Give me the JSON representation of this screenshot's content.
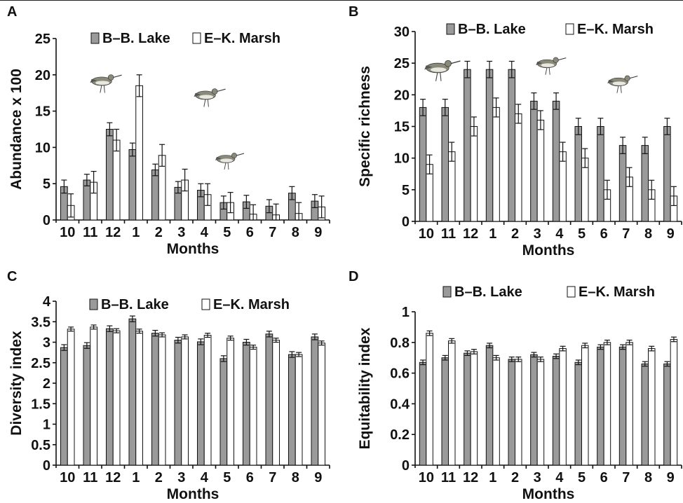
{
  "colors": {
    "lake": "#9a9a9a",
    "marsh": "#ffffff",
    "stroke": "#111111"
  },
  "bird_icon": "sandpiper-icon",
  "chart_data": [
    {
      "panel": "A",
      "type": "bar",
      "title": "",
      "xlabel": "Months",
      "ylabel": "Abundance x 100",
      "categories": [
        "10",
        "11",
        "12",
        "1",
        "2",
        "3",
        "4",
        "5",
        "6",
        "7",
        "8",
        "9"
      ],
      "ylim": [
        0,
        25
      ],
      "yticks": [
        "0",
        "5",
        "10",
        "15",
        "20",
        "25"
      ],
      "legend": "top-right",
      "series": [
        {
          "name": "B–B. Lake",
          "values": [
            4.6,
            5.5,
            12.5,
            9.7,
            6.9,
            4.5,
            4.1,
            2.4,
            2.5,
            1.9,
            3.7,
            2.6
          ],
          "errors": [
            0.9,
            0.8,
            0.9,
            0.9,
            0.8,
            0.8,
            0.9,
            0.9,
            0.9,
            0.9,
            0.9,
            0.9
          ]
        },
        {
          "name": "E–K. Marsh",
          "values": [
            2.0,
            5.2,
            11.0,
            18.5,
            8.9,
            5.5,
            3.5,
            2.4,
            0.8,
            0.7,
            0.9,
            1.8
          ],
          "errors": [
            1.6,
            1.5,
            1.5,
            1.5,
            1.5,
            1.5,
            1.5,
            1.4,
            1.3,
            1.5,
            1.5,
            1.5
          ]
        }
      ]
    },
    {
      "panel": "B",
      "type": "bar",
      "title": "",
      "xlabel": "Months",
      "ylabel": "Specific richness",
      "categories": [
        "10",
        "11",
        "12",
        "1",
        "2",
        "3",
        "4",
        "5",
        "6",
        "7",
        "8",
        "9"
      ],
      "ylim": [
        0,
        30
      ],
      "yticks": [
        "0",
        "5",
        "10",
        "15",
        "20",
        "25",
        "30"
      ],
      "legend": "top-right",
      "series": [
        {
          "name": "B–B. Lake",
          "values": [
            18,
            18,
            24,
            24,
            24,
            19,
            19,
            15,
            15,
            12,
            12,
            15
          ],
          "errors": [
            1.3,
            1.3,
            1.3,
            1.3,
            1.3,
            1.3,
            1.3,
            1.3,
            1.3,
            1.3,
            1.3,
            1.3
          ]
        },
        {
          "name": "E–K. Marsh",
          "values": [
            9,
            11,
            15,
            18,
            17,
            16,
            11,
            10,
            5,
            7,
            5,
            4
          ],
          "errors": [
            1.5,
            1.5,
            1.5,
            1.5,
            1.5,
            1.5,
            1.5,
            1.5,
            1.5,
            1.5,
            1.5,
            1.5
          ]
        }
      ]
    },
    {
      "panel": "C",
      "type": "bar",
      "title": "",
      "xlabel": "Months",
      "ylabel": "Diversity index",
      "categories": [
        "10",
        "11",
        "12",
        "1",
        "2",
        "3",
        "4",
        "5",
        "6",
        "7",
        "8",
        "9"
      ],
      "ylim": [
        0,
        4
      ],
      "yticks": [
        "0",
        "0.5",
        "1",
        "1.5",
        "2",
        "2.5",
        "3",
        "3.5",
        "4"
      ],
      "legend": "top-right",
      "series": [
        {
          "name": "B–B. Lake",
          "values": [
            2.87,
            2.92,
            3.33,
            3.57,
            3.22,
            3.05,
            3.01,
            2.6,
            3.0,
            3.2,
            2.7,
            3.13
          ],
          "errors": [
            0.07,
            0.07,
            0.07,
            0.07,
            0.07,
            0.07,
            0.07,
            0.07,
            0.07,
            0.07,
            0.07,
            0.07
          ]
        },
        {
          "name": "E–K. Marsh",
          "values": [
            3.32,
            3.37,
            3.28,
            3.27,
            3.18,
            3.13,
            3.17,
            3.1,
            2.88,
            3.05,
            2.7,
            2.98
          ],
          "errors": [
            0.05,
            0.05,
            0.05,
            0.05,
            0.05,
            0.05,
            0.05,
            0.05,
            0.05,
            0.05,
            0.05,
            0.05
          ]
        }
      ]
    },
    {
      "panel": "D",
      "type": "bar",
      "title": "",
      "xlabel": "Months",
      "ylabel": "Equitability index",
      "categories": [
        "10",
        "11",
        "12",
        "1",
        "2",
        "3",
        "4",
        "5",
        "6",
        "7",
        "8",
        "9"
      ],
      "ylim": [
        0,
        1
      ],
      "yticks": [
        "0",
        "0.2",
        "0.4",
        "0.6",
        "0.8",
        "1"
      ],
      "legend": "top-right",
      "series": [
        {
          "name": "B–B. Lake",
          "values": [
            0.67,
            0.7,
            0.73,
            0.78,
            0.69,
            0.72,
            0.71,
            0.67,
            0.77,
            0.77,
            0.66,
            0.66
          ],
          "errors": [
            0.015,
            0.015,
            0.015,
            0.015,
            0.015,
            0.015,
            0.015,
            0.015,
            0.015,
            0.015,
            0.015,
            0.015
          ]
        },
        {
          "name": "E–K. Marsh",
          "values": [
            0.86,
            0.81,
            0.74,
            0.7,
            0.69,
            0.69,
            0.76,
            0.78,
            0.8,
            0.8,
            0.76,
            0.82
          ],
          "errors": [
            0.015,
            0.015,
            0.015,
            0.015,
            0.015,
            0.015,
            0.015,
            0.015,
            0.015,
            0.015,
            0.015,
            0.015
          ]
        }
      ]
    }
  ]
}
